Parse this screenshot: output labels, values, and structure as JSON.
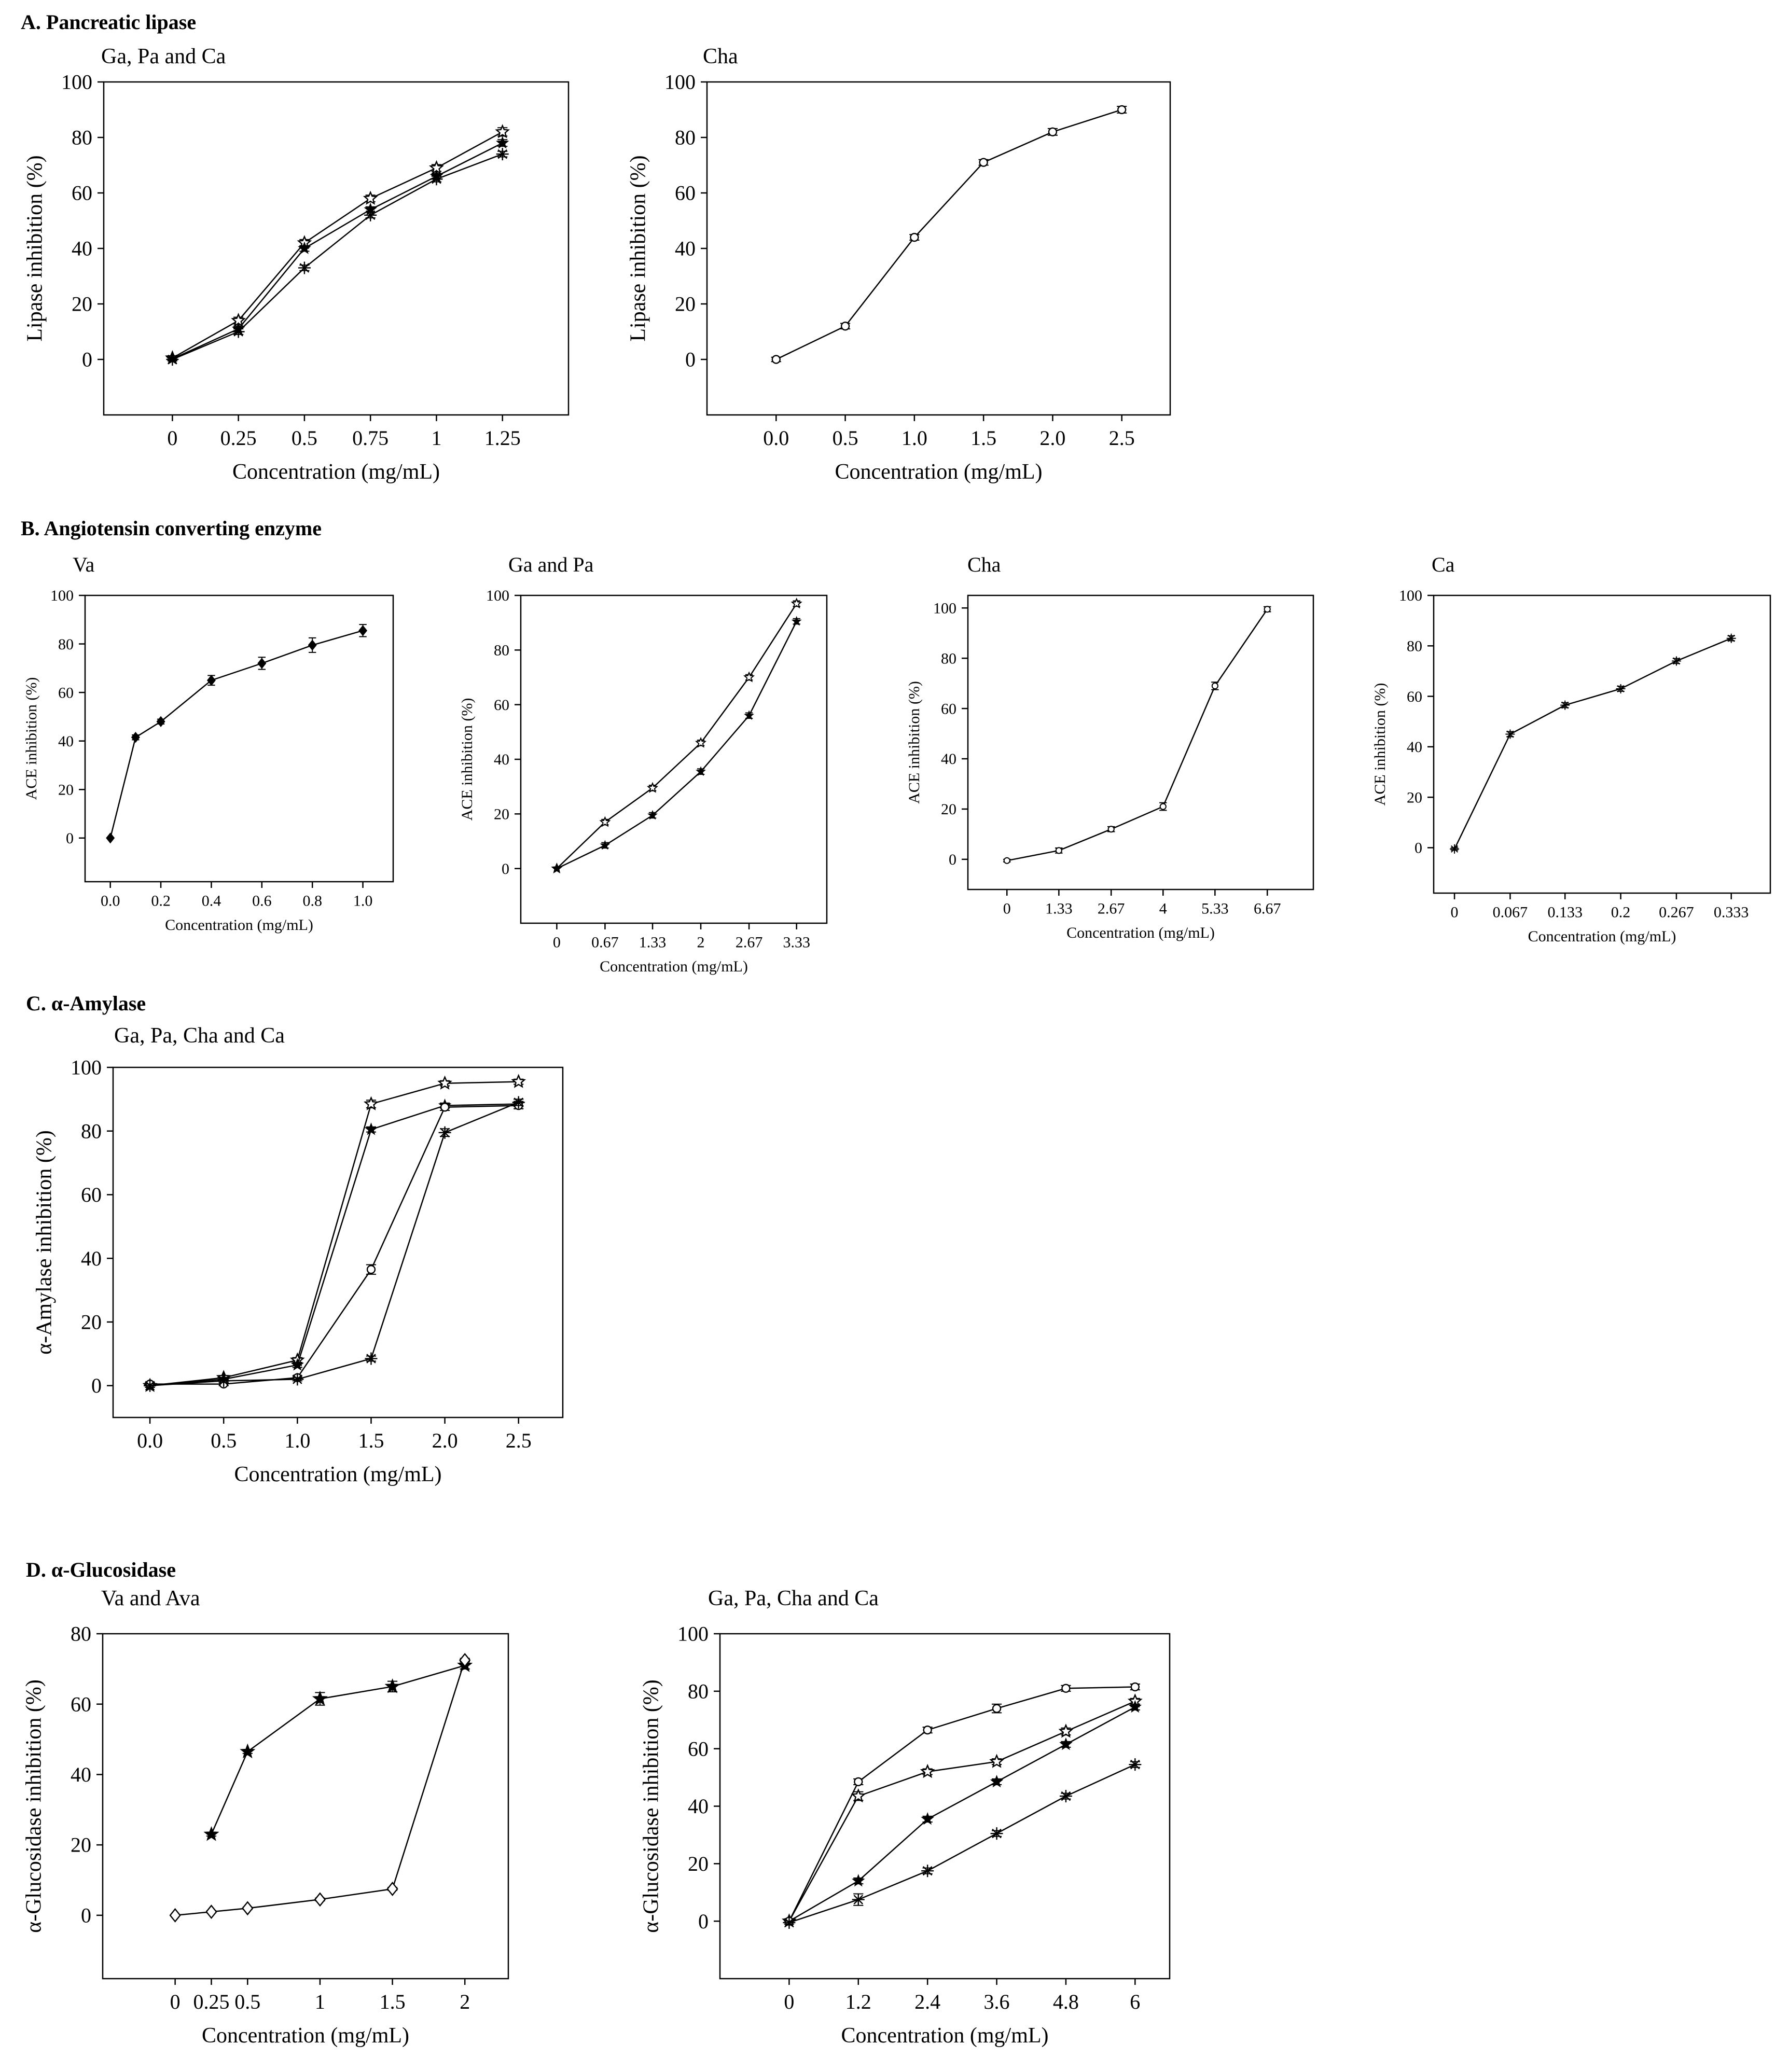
{
  "sections": {
    "A": "A. Pancreatic lipase",
    "B": "B. Angiotensin converting enzyme",
    "C": "C. α-Amylase",
    "D": "D. α-Glucosidase"
  },
  "chart_data": [
    {
      "id": "lipase-1",
      "type": "line",
      "title": "Ga, Pa and Ca",
      "xlabel": "Concentration (mg/mL)",
      "ylabel": "Lipase inhibition (%)",
      "categories": [
        "0",
        "0.25",
        "0.5",
        "0.75",
        "1",
        "1.25"
      ],
      "x": [
        0,
        0.25,
        0.5,
        0.75,
        1,
        1.25
      ],
      "xlim": [
        -0.26,
        1.5
      ],
      "ylim": [
        -20,
        100
      ],
      "yticks": [
        0,
        20,
        40,
        60,
        80,
        100
      ],
      "series": [
        {
          "name": "Ga",
          "marker": "star-open",
          "values": [
            0.5,
            14,
            42,
            58,
            69,
            82
          ],
          "err": [
            0.5,
            1.2,
            1.2,
            1.2,
            1.2,
            1.5
          ]
        },
        {
          "name": "Pa",
          "marker": "star-filled",
          "values": [
            0.2,
            11,
            40,
            54,
            66,
            78
          ],
          "err": [
            0.5,
            1,
            1,
            1,
            1,
            1.2
          ]
        },
        {
          "name": "Ca",
          "marker": "cross",
          "values": [
            0,
            10,
            33,
            52,
            65,
            74
          ],
          "err": [
            0.5,
            1,
            1,
            1,
            1,
            1
          ]
        }
      ]
    },
    {
      "id": "lipase-2",
      "type": "line",
      "title": "Cha",
      "xlabel": "Concentration (mg/mL)",
      "ylabel": "Lipase inhibition (%)",
      "categories": [
        "0.0",
        "0.5",
        "1.0",
        "1.5",
        "2.0",
        "2.5"
      ],
      "x": [
        0,
        0.5,
        1.0,
        1.5,
        2.0,
        2.5
      ],
      "xlim": [
        -0.5,
        2.85
      ],
      "ylim": [
        -20,
        100
      ],
      "yticks": [
        0,
        20,
        40,
        60,
        80,
        100
      ],
      "series": [
        {
          "name": "Cha",
          "marker": "circle",
          "values": [
            0,
            12,
            44,
            71,
            82,
            90
          ],
          "err": [
            0.8,
            1,
            1,
            1,
            1.2,
            1.2
          ]
        }
      ]
    },
    {
      "id": "ace-va",
      "type": "line",
      "title": "Va",
      "xlabel": "Concentration (mg/mL)",
      "ylabel": "ACE inhibition (%)",
      "categories": [
        "0.0",
        "0.2",
        "0.4",
        "0.6",
        "0.8",
        "1.0"
      ],
      "x": [
        0,
        0.1,
        0.2,
        0.4,
        0.6,
        0.8,
        1.0
      ],
      "xticks": [
        0,
        0.2,
        0.4,
        0.6,
        0.8,
        1.0
      ],
      "xlim": [
        -0.1,
        1.12
      ],
      "ylim": [
        -18,
        100
      ],
      "yticks": [
        0,
        20,
        40,
        60,
        80,
        100
      ],
      "series": [
        {
          "name": "Va",
          "marker": "diamond-filled",
          "values": [
            0,
            41.5,
            48,
            65,
            72,
            79.5,
            85.5
          ],
          "err": [
            0,
            1,
            1,
            2,
            2.5,
            3,
            2.5
          ]
        }
      ]
    },
    {
      "id": "ace-ga-pa",
      "type": "line",
      "title": "Ga and Pa",
      "xlabel": "Concentration (mg/mL)",
      "ylabel": "ACE inhibition (%)",
      "categories": [
        "0",
        "0.67",
        "1.33",
        "2",
        "2.67",
        "3.33"
      ],
      "x": [
        0,
        0.67,
        1.33,
        2,
        2.67,
        3.33
      ],
      "xlim": [
        -0.5,
        3.75
      ],
      "ylim": [
        -20,
        100
      ],
      "yticks": [
        0,
        20,
        40,
        60,
        80,
        100
      ],
      "series": [
        {
          "name": "Ga",
          "marker": "star-open",
          "values": [
            0,
            17,
            29.5,
            46,
            70,
            97
          ],
          "err": [
            0,
            1,
            1,
            1,
            1,
            1
          ]
        },
        {
          "name": "Pa",
          "marker": "star-filled",
          "values": [
            0,
            8.5,
            19.5,
            35.5,
            56,
            90.5
          ],
          "err": [
            0,
            1,
            1,
            1,
            1,
            1
          ]
        }
      ]
    },
    {
      "id": "ace-cha",
      "type": "line",
      "title": "Cha",
      "xlabel": "Concentration (mg/mL)",
      "ylabel": "ACE inhibition (%)",
      "categories": [
        "0",
        "1.33",
        "2.67",
        "4",
        "5.33",
        "6.67"
      ],
      "x": [
        0,
        1.33,
        2.67,
        4,
        5.33,
        6.67
      ],
      "xlim": [
        -1.0,
        7.85
      ],
      "ylim": [
        -12,
        105
      ],
      "yticks": [
        0,
        20,
        40,
        60,
        80,
        100
      ],
      "series": [
        {
          "name": "Cha",
          "marker": "circle",
          "values": [
            -0.5,
            3.5,
            12,
            21,
            69,
            99.5
          ],
          "err": [
            0.5,
            1,
            1,
            1.5,
            1.5,
            1
          ]
        }
      ]
    },
    {
      "id": "ace-ca",
      "type": "line",
      "title": "Ca",
      "xlabel": "Concentration (mg/mL)",
      "ylabel": "ACE inhibition (%)",
      "categories": [
        "0",
        "0.067",
        "0.133",
        "0.2",
        "0.267",
        "0.333"
      ],
      "x": [
        0,
        0.067,
        0.133,
        0.2,
        0.267,
        0.333
      ],
      "xlim": [
        -0.025,
        0.38
      ],
      "ylim": [
        -18,
        100
      ],
      "yticks": [
        0,
        20,
        40,
        60,
        80,
        100
      ],
      "series": [
        {
          "name": "Ca",
          "marker": "cross",
          "values": [
            -0.5,
            45,
            56.5,
            63,
            74,
            83
          ],
          "err": [
            0.5,
            1,
            1,
            1,
            1,
            1
          ]
        }
      ]
    },
    {
      "id": "amylase",
      "type": "line",
      "title": "Ga, Pa, Cha and Ca",
      "xlabel": "Concentration (mg/mL)",
      "ylabel": "α-Amylase inhibition (%)",
      "categories": [
        "0.0",
        "0.5",
        "1.0",
        "1.5",
        "2.0",
        "2.5"
      ],
      "x": [
        0,
        0.5,
        1.0,
        1.5,
        2.0,
        2.5
      ],
      "xlim": [
        -0.25,
        2.8
      ],
      "ylim": [
        -10,
        100
      ],
      "yticks": [
        0,
        20,
        40,
        60,
        80,
        100
      ],
      "series": [
        {
          "name": "Ga",
          "marker": "star-open",
          "values": [
            0,
            2.5,
            8,
            88.5,
            95,
            95.5
          ],
          "err": [
            0.5,
            0.6,
            0.8,
            1.2,
            0.8,
            0.8
          ]
        },
        {
          "name": "Pa",
          "marker": "star-filled",
          "values": [
            0,
            2,
            6.5,
            80.5,
            88,
            88.5
          ],
          "err": [
            0.5,
            0.6,
            0.8,
            0.8,
            0.8,
            0.8
          ]
        },
        {
          "name": "Cha",
          "marker": "circle",
          "values": [
            0.5,
            0.5,
            2.5,
            36.5,
            87.5,
            88
          ],
          "err": [
            0.5,
            0.5,
            0.5,
            1.5,
            1,
            1
          ]
        },
        {
          "name": "Ca",
          "marker": "cross",
          "values": [
            0,
            1.5,
            2,
            8.5,
            79.5,
            89
          ],
          "err": [
            0.5,
            0.5,
            0.5,
            0.8,
            1.2,
            1
          ]
        }
      ]
    },
    {
      "id": "glucosidase-1",
      "type": "line",
      "title": "Va and Ava",
      "xlabel": "Concentration (mg/mL)",
      "ylabel": "α-Glucosidase inhibition (%)",
      "categories": [
        "0",
        "0.25",
        "0.5",
        "1",
        "1.5",
        "2"
      ],
      "x": [
        0,
        0.25,
        0.5,
        1,
        1.5,
        2
      ],
      "xlim": [
        -0.5,
        2.3
      ],
      "ylim": [
        -18,
        80
      ],
      "yticks": [
        0,
        20,
        40,
        60,
        80
      ],
      "series": [
        {
          "name": "Va",
          "marker": "star-filled-bold",
          "values": [
            null,
            23,
            46.5,
            61.5,
            65,
            71
          ],
          "err": [
            0,
            0.5,
            0.5,
            1.8,
            1.5,
            1
          ]
        },
        {
          "name": "Ava",
          "marker": "diamond-open",
          "values": [
            0,
            1,
            2,
            4.5,
            7.5,
            72.5
          ],
          "err": [
            0,
            0.3,
            0.3,
            0.4,
            0.4,
            0.5
          ]
        }
      ]
    },
    {
      "id": "glucosidase-2",
      "type": "line",
      "title": "Ga, Pa, Cha and Ca",
      "xlabel": "Concentration (mg/mL)",
      "ylabel": "α-Glucosidase inhibition (%)",
      "categories": [
        "0",
        "1.2",
        "2.4",
        "3.6",
        "4.8",
        "6"
      ],
      "x": [
        0,
        1.2,
        2.4,
        3.6,
        4.8,
        6
      ],
      "xlim": [
        -1.2,
        6.6
      ],
      "ylim": [
        -20,
        100
      ],
      "yticks": [
        0,
        20,
        40,
        60,
        80,
        100
      ],
      "series": [
        {
          "name": "Ga",
          "marker": "star-open",
          "values": [
            0,
            43.5,
            52,
            55.5,
            66,
            76.5
          ],
          "err": [
            0.5,
            1.5,
            1,
            1,
            1.2,
            1
          ]
        },
        {
          "name": "Pa",
          "marker": "star-filled",
          "values": [
            0,
            14,
            35.5,
            48.5,
            61.5,
            74.5
          ],
          "err": [
            0.5,
            1,
            1,
            1,
            1,
            1
          ]
        },
        {
          "name": "Cha",
          "marker": "circle",
          "values": [
            0,
            48.5,
            66.5,
            74,
            81,
            81.5
          ],
          "err": [
            0.5,
            1,
            1,
            1.5,
            1,
            1
          ]
        },
        {
          "name": "Ca",
          "marker": "cross",
          "values": [
            -0.5,
            7.5,
            17.5,
            30.5,
            43.5,
            54.5
          ],
          "err": [
            0.5,
            2,
            1,
            1,
            1,
            1
          ]
        }
      ]
    }
  ]
}
